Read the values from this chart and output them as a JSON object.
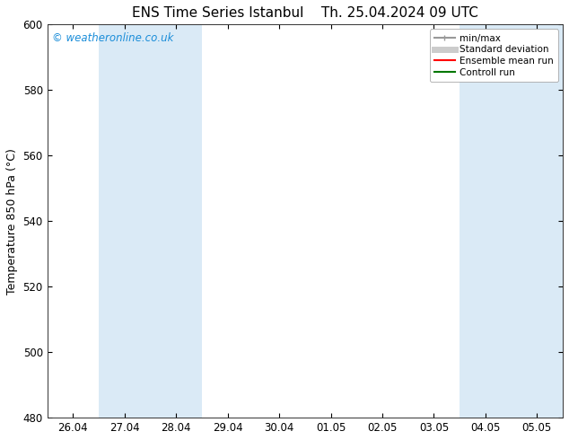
{
  "title_left": "ENS Time Series Istanbul",
  "title_right": "Th. 25.04.2024 09 UTC",
  "ylabel": "Temperature 850 hPa (°C)",
  "watermark": "© weatheronline.co.uk",
  "watermark_color": "#1a8dd9",
  "background_color": "#ffffff",
  "plot_bg_color": "#ffffff",
  "ylim": [
    480,
    600
  ],
  "yticks": [
    480,
    500,
    520,
    540,
    560,
    580,
    600
  ],
  "xtick_labels": [
    "26.04",
    "27.04",
    "28.04",
    "29.04",
    "30.04",
    "01.05",
    "02.05",
    "03.05",
    "04.05",
    "05.05"
  ],
  "shaded_bands": [
    {
      "xmin": 1.0,
      "xmax": 3.0,
      "color": "#daeaf6"
    },
    {
      "xmin": 8.0,
      "xmax": 10.0,
      "color": "#daeaf6"
    }
  ],
  "legend_entries": [
    {
      "label": "min/max",
      "color": "#999999",
      "lw": 1.5
    },
    {
      "label": "Standard deviation",
      "color": "#cccccc",
      "lw": 5
    },
    {
      "label": "Ensemble mean run",
      "color": "#ff0000",
      "lw": 1.5
    },
    {
      "label": "Controll run",
      "color": "#007700",
      "lw": 1.5
    }
  ],
  "x_num_points": 10,
  "title_fontsize": 11,
  "axis_label_fontsize": 9,
  "tick_fontsize": 8.5,
  "watermark_fontsize": 8.5,
  "legend_fontsize": 7.5
}
